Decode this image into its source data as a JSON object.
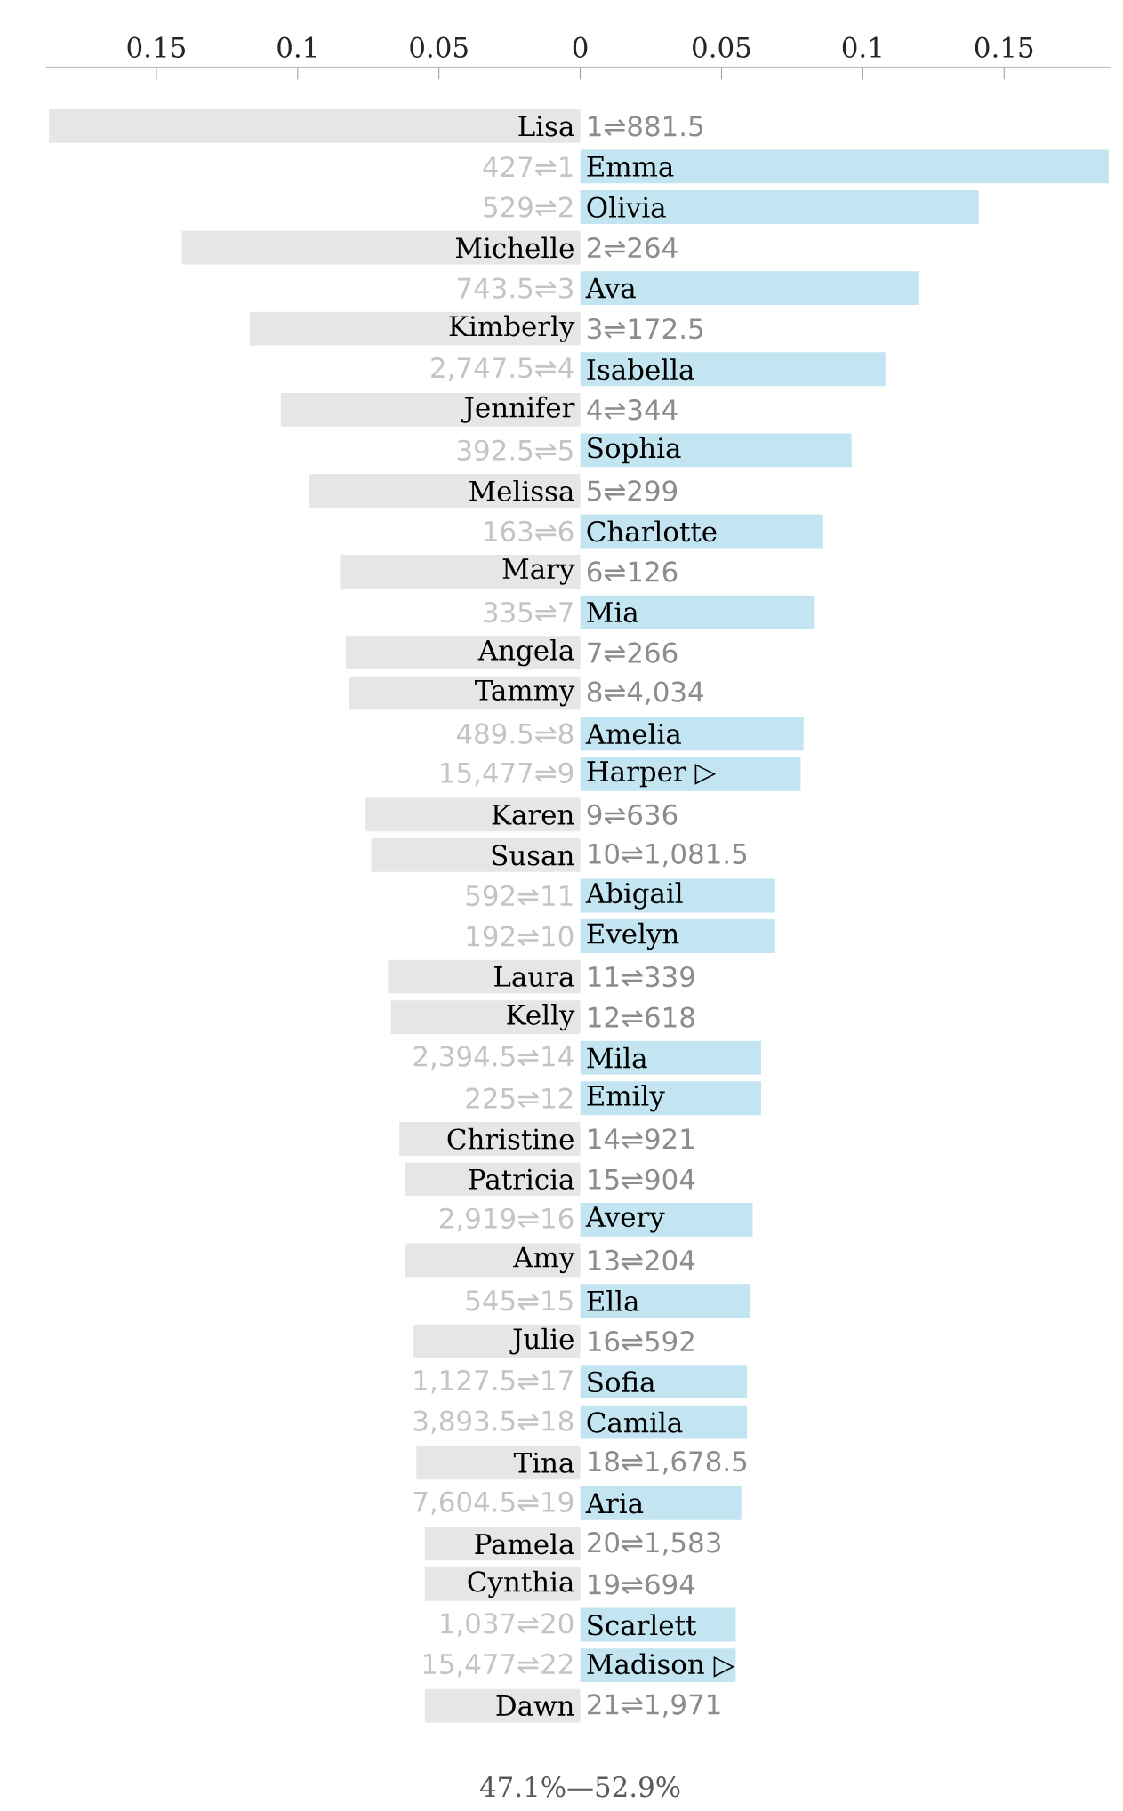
{
  "chart_data": {
    "type": "bar",
    "orientation": "horizontal",
    "categories": [
      "Lisa",
      "Emma",
      "Olivia",
      "Michelle",
      "Ava",
      "Kimberly",
      "Isabella",
      "Jennifer",
      "Sophia",
      "Melissa",
      "Charlotte",
      "Mary",
      "Mia",
      "Angela",
      "Tammy",
      "Amelia",
      "Harper ▷",
      "Karen",
      "Susan",
      "Abigail",
      "Evelyn",
      "Laura",
      "Kelly",
      "Mila",
      "Emily",
      "Christine",
      "Patricia",
      "Avery",
      "Amy",
      "Ella",
      "Julie",
      "Sofia",
      "Camila",
      "Tina",
      "Aria",
      "Pamela",
      "Cynthia",
      "Scarlett",
      "Madison ▷",
      "Dawn"
    ],
    "series": [
      {
        "color": "#e6e6e6",
        "values": [
          -0.188,
          null,
          null,
          -0.141,
          null,
          -0.117,
          null,
          -0.106,
          null,
          -0.096,
          null,
          -0.085,
          null,
          -0.083,
          -0.082,
          null,
          null,
          -0.076,
          -0.074,
          null,
          null,
          -0.068,
          -0.067,
          null,
          null,
          -0.064,
          -0.062,
          null,
          -0.062,
          null,
          -0.059,
          null,
          null,
          -0.058,
          null,
          -0.055,
          -0.055,
          null,
          null,
          -0.055
        ]
      },
      {
        "color": "#c2e5f1",
        "values": [
          null,
          0.187,
          0.141,
          null,
          0.12,
          null,
          0.108,
          null,
          0.096,
          null,
          0.086,
          null,
          0.083,
          null,
          null,
          0.079,
          0.078,
          null,
          null,
          0.069,
          0.069,
          null,
          null,
          0.064,
          0.064,
          null,
          null,
          0.061,
          null,
          0.06,
          null,
          0.059,
          0.059,
          null,
          0.057,
          null,
          null,
          0.055,
          0.055,
          null
        ]
      }
    ],
    "xlim": [
      -0.189,
      0.188
    ],
    "xticks": [
      {
        "value": -0.15,
        "label": "0.15"
      },
      {
        "value": -0.1,
        "label": "0.1"
      },
      {
        "value": -0.05,
        "label": "0.05"
      },
      0,
      0.05,
      0.1,
      0.15
    ],
    "annotations": [
      "1⇌881.5",
      "427⇌1",
      "529⇌2",
      "2⇌264",
      "743.5⇌3",
      "3⇌172.5",
      "2,747.5⇌4",
      "4⇌344",
      "392.5⇌5",
      "5⇌299",
      "163⇌6",
      "6⇌126",
      "335⇌7",
      "7⇌266",
      "8⇌4,034",
      "489.5⇌8",
      "15,477⇌9",
      "9⇌636",
      "10⇌1,081.5",
      "592⇌11",
      "192⇌10",
      "11⇌339",
      "12⇌618",
      "2,394.5⇌14",
      "225⇌12",
      "14⇌921",
      "15⇌904",
      "2,919⇌16",
      "13⇌204",
      "545⇌15",
      "16⇌592",
      "1,127.5⇌17",
      "3,893.5⇌18",
      "18⇌1,678.5",
      "7,604.5⇌19",
      "20⇌1,583",
      "19⇌694",
      "1,037⇌20",
      "15,477⇌22",
      "21⇌1,971",
      "47.1%—52.9%"
    ]
  }
}
